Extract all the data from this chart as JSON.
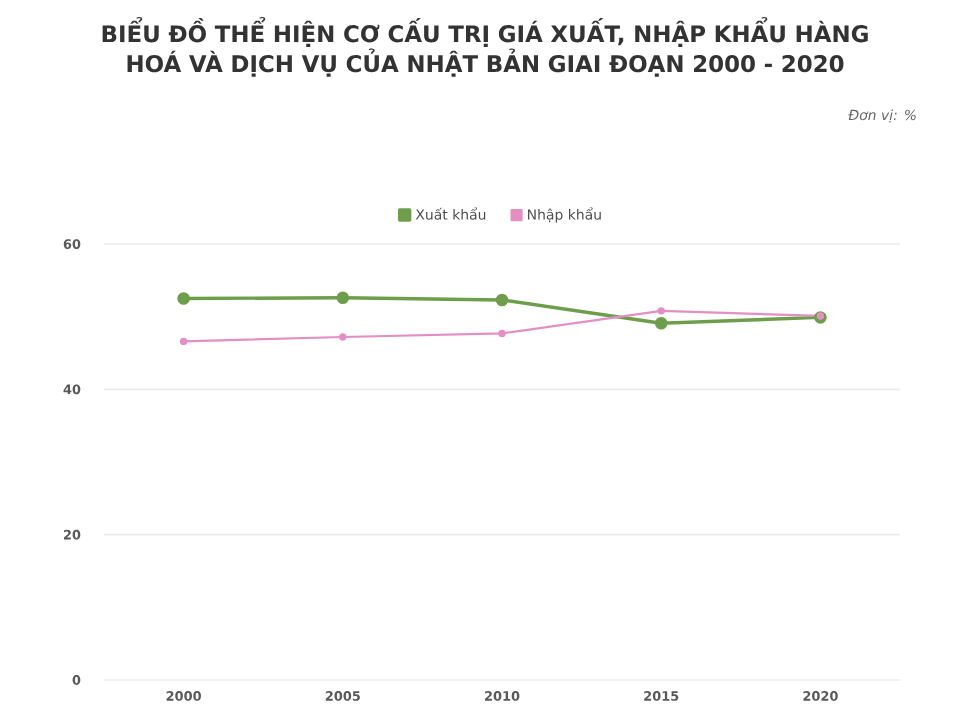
{
  "chart_data": {
    "type": "line",
    "title": "BIỂU ĐỒ THỂ HIỆN CƠ CẤU TRỊ GIÁ XUẤT, NHẬP KHẨU HÀNG HOÁ VÀ DỊCH VỤ CỦA NHẬT BẢN GIAI ĐOẠN 2000 - 2020",
    "subtitle": "Đơn vị: %",
    "categories": [
      "2000",
      "2005",
      "2010",
      "2015",
      "2020"
    ],
    "series": [
      {
        "name": "Xuất khẩu",
        "color": "#6e9e4c",
        "values": [
          52.5,
          52.6,
          52.3,
          49.1,
          49.9
        ]
      },
      {
        "name": "Nhập khẩu",
        "color": "#e38fc4",
        "values": [
          46.6,
          47.2,
          47.7,
          50.8,
          50.1
        ]
      }
    ],
    "ylim": [
      0,
      60
    ],
    "yticks": [
      0,
      20,
      40,
      60
    ],
    "grid": "y",
    "legend": "top",
    "marker": "circle",
    "line_style": "solid"
  }
}
